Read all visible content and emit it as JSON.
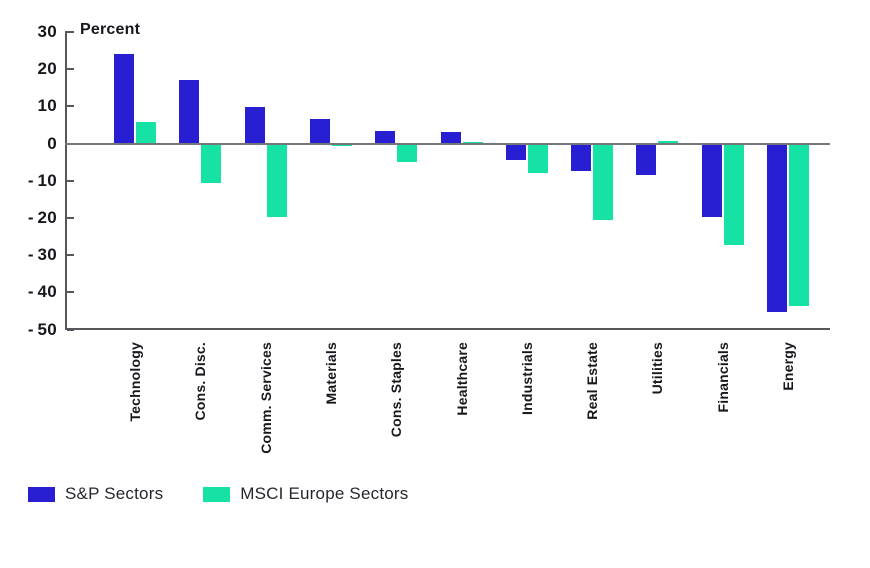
{
  "chart_data": {
    "type": "bar",
    "ylabel": "Percent",
    "categories": [
      "Technology",
      "Cons. Disc.",
      "Comm. Services",
      "Materials",
      "Cons. Staples",
      "Healthcare",
      "Industrials",
      "Real Estate",
      "Utilities",
      "Financials",
      "Energy"
    ],
    "series": [
      {
        "name": "S&P Sectors",
        "color": "#281ed2",
        "values": [
          24,
          17,
          9.8,
          6.5,
          3.3,
          3.2,
          -4.2,
          -7,
          -8.3,
          -19.5,
          -45
        ]
      },
      {
        "name": "MSCI Europe Sectors",
        "color": "#15e2a4",
        "values": [
          5.7,
          -10.3,
          -19.5,
          -0.5,
          -4.8,
          0.5,
          -7.7,
          -20.3,
          0.7,
          -27,
          -43.5
        ]
      }
    ],
    "ylim": [
      -50,
      30
    ],
    "yticks": [
      30,
      20,
      10,
      0,
      -10,
      -20,
      -30,
      -40,
      -50
    ],
    "grid": false,
    "legend_position": "bottom-left",
    "axis_color": "#55575b",
    "zero_line_color": "#74767a"
  }
}
